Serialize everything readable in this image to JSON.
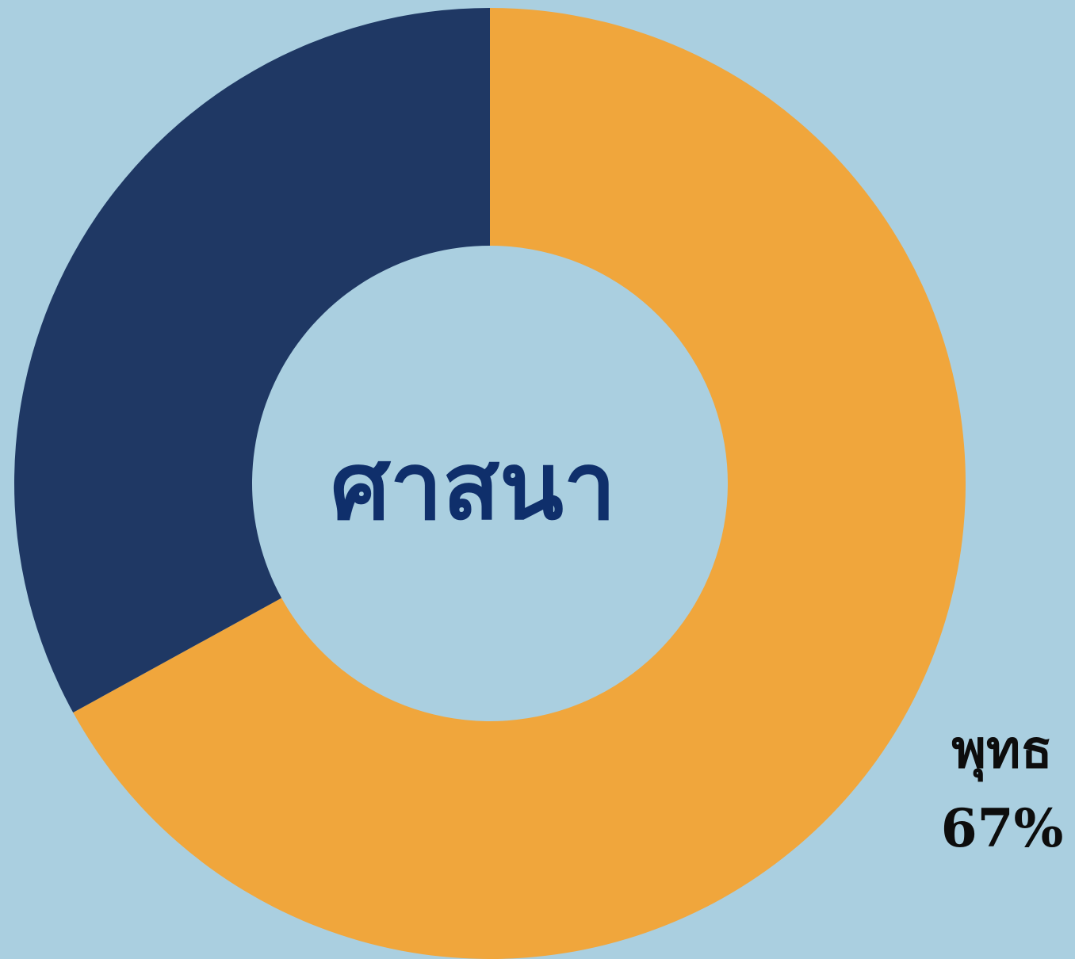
{
  "chart_data": {
    "type": "pie",
    "variant": "donut",
    "center_label": "ศาสนา",
    "slices": [
      {
        "name": "พุทธ",
        "value": 67,
        "value_label": "67%",
        "color": "#f0a63c",
        "show_label": true
      },
      {
        "value": 33,
        "color": "#1f3864",
        "show_label": false
      }
    ],
    "start_angle_deg": 0,
    "direction": "clockwise"
  },
  "colors": {
    "background": "#aacfe0",
    "center_text": "#0f2f6b",
    "label_text": "#0d0d0d"
  }
}
